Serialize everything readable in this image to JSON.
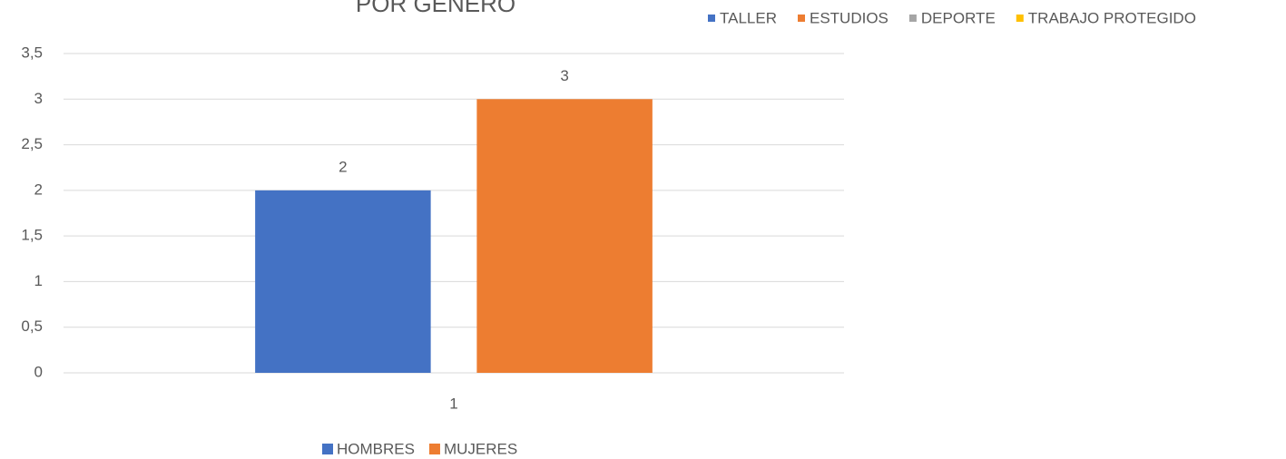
{
  "chart_data": {
    "type": "bar",
    "title": "POR GENERO",
    "categories": [
      "1"
    ],
    "series": [
      {
        "name": "HOMBRES",
        "color": "#4472c4",
        "values": [
          2
        ]
      },
      {
        "name": "MUJERES",
        "color": "#ed7d31",
        "values": [
          3
        ]
      }
    ],
    "ylim": [
      0,
      3.5
    ],
    "yticks": [
      0,
      {
        "value": 0.5,
        "label": "0,5"
      },
      1,
      {
        "value": 1.5,
        "label": "1,5"
      },
      2,
      {
        "value": 2.5,
        "label": "2,5"
      },
      3,
      {
        "value": 3.5,
        "label": "3,5"
      }
    ],
    "grid": true,
    "legend": "bottom",
    "extra_legend": [
      {
        "name": "TALLER",
        "color": "#4472c4"
      },
      {
        "name": "ESTUDIOS",
        "color": "#ed7d31"
      },
      {
        "name": "DEPORTE",
        "color": "#a5a5a5"
      },
      {
        "name": "TRABAJO PROTEGIDO",
        "color": "#ffc000"
      }
    ]
  }
}
